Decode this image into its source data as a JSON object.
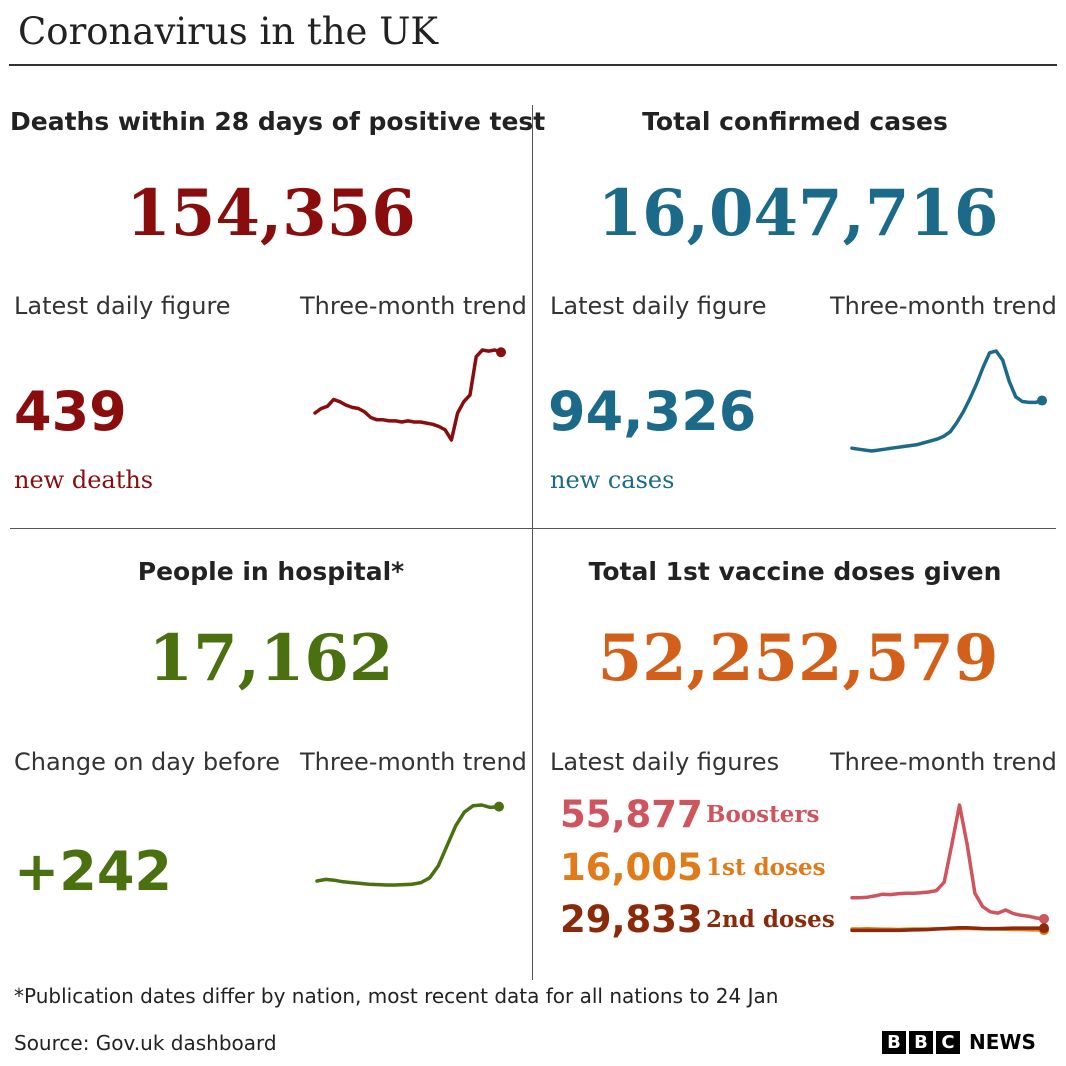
{
  "title": "Coronavirus in the UK",
  "colors": {
    "deaths": "#8a0d0d",
    "cases": "#1b6a8a",
    "hospital": "#4a7010",
    "vaccine": "#d2601a",
    "boosters": "#d0545e",
    "first_doses": "#e07b1a",
    "second_doses": "#8a2a0a"
  },
  "deaths": {
    "heading": "Deaths within 28 days of positive test",
    "total": "154,356",
    "latest_label": "Latest daily figure",
    "trend_label": "Three-month trend",
    "daily": "439",
    "daily_sub": "new deaths"
  },
  "cases": {
    "heading": "Total confirmed cases",
    "total": "16,047,716",
    "latest_label": "Latest daily figure",
    "trend_label": "Three-month trend",
    "daily": "94,326",
    "daily_sub": "new cases"
  },
  "hospital": {
    "heading": "People in hospital*",
    "total": "17,162",
    "latest_label": "Change on day before",
    "trend_label": "Three-month trend",
    "daily": "+242"
  },
  "vaccine": {
    "heading": "Total 1st vaccine doses given",
    "total": "52,252,579",
    "latest_label": "Latest daily figures",
    "trend_label": "Three-month trend",
    "rows": [
      {
        "value": "55,877",
        "label": "Boosters"
      },
      {
        "value": "16,005",
        "label": "1st doses"
      },
      {
        "value": "29,833",
        "label": "2nd doses"
      }
    ]
  },
  "footnote": "*Publication dates differ by nation, most recent data for all nations to 24 Jan",
  "source": "Source: Gov.uk dashboard",
  "brand": {
    "letters": [
      "B",
      "B",
      "C"
    ],
    "news": "NEWS"
  },
  "chart_data": [
    {
      "type": "line",
      "name": "deaths-trend",
      "values": [
        40,
        44,
        46,
        52,
        50,
        47,
        45,
        44,
        41,
        36,
        34,
        34,
        33,
        33,
        32,
        33,
        32,
        32,
        31,
        30,
        28,
        25,
        16,
        40,
        50,
        56,
        90,
        96,
        95,
        96,
        94
      ]
    },
    {
      "type": "line",
      "name": "cases-trend",
      "values": [
        42,
        41,
        40,
        39,
        40,
        41,
        42,
        43,
        44,
        45,
        46,
        48,
        50,
        52,
        55,
        60,
        70,
        82,
        96,
        112,
        130,
        146,
        148,
        138,
        115,
        98,
        93,
        92,
        92,
        94
      ]
    },
    {
      "type": "line",
      "name": "hospital-trend",
      "values": [
        7.6,
        7.8,
        7.7,
        7.5,
        7.4,
        7.3,
        7.2,
        7.15,
        7.1,
        7.1,
        7.15,
        7.2,
        7.4,
        8.0,
        9.5,
        12.0,
        14.5,
        16.2,
        17.0,
        17.1,
        16.8,
        16.9
      ]
    },
    {
      "type": "line",
      "name": "vaccine-trend",
      "series": [
        {
          "key": "boosters",
          "values": [
            80,
            80,
            81,
            84,
            88,
            87,
            89,
            90,
            90,
            91,
            93,
            96,
            115,
            200,
            290,
            200,
            90,
            60,
            48,
            45,
            52,
            44,
            40,
            38,
            34,
            32
          ]
        },
        {
          "key": "first_doses",
          "values": [
            9,
            9,
            9.5,
            9,
            8.5,
            8.5,
            8,
            8.5,
            9,
            9,
            9,
            9.5,
            10,
            10,
            10,
            10.5,
            10,
            9.5,
            9,
            9,
            8.5,
            8,
            8,
            7.5,
            7,
            6.5
          ]
        },
        {
          "key": "second_doses",
          "values": [
            6,
            6,
            6,
            6,
            6,
            6,
            6,
            6.5,
            7,
            7.5,
            8,
            9,
            10,
            11,
            12,
            12,
            11,
            10,
            10,
            10,
            10.5,
            11,
            11,
            11,
            11,
            11
          ]
        }
      ]
    }
  ]
}
